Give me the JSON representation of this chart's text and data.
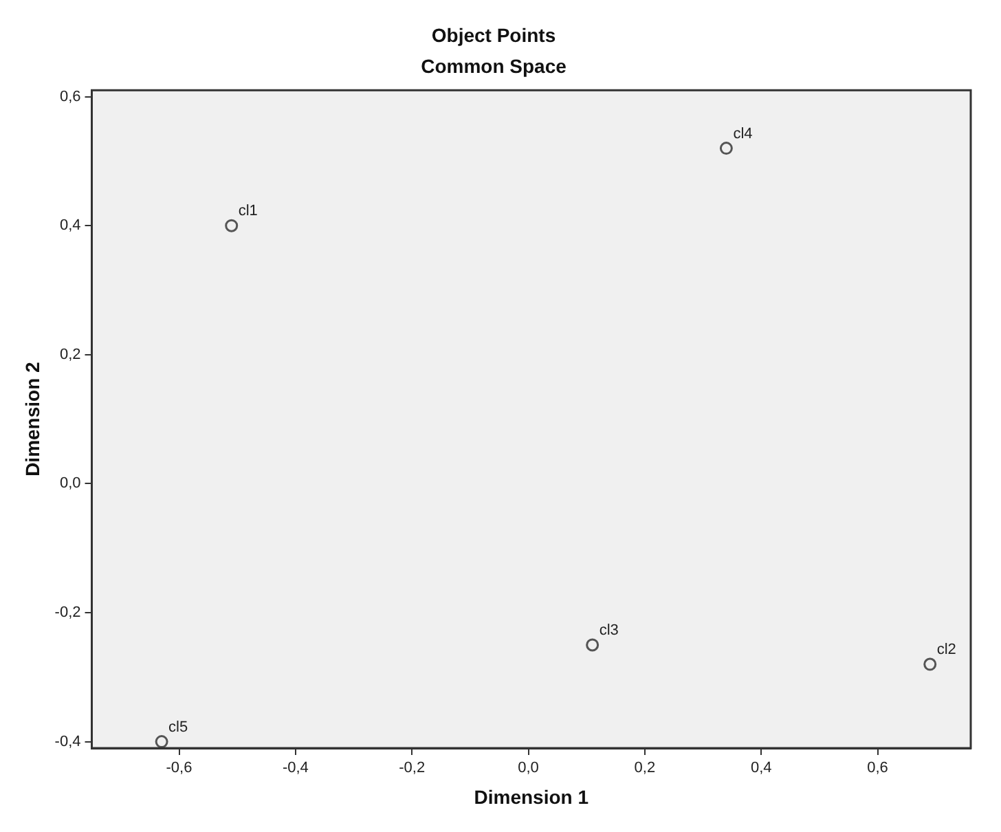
{
  "chart_data": {
    "type": "scatter",
    "title": "Object Points",
    "subtitle": "Common Space",
    "xlabel": "Dimension 1",
    "ylabel": "Dimension 2",
    "x": [
      -0.51,
      0.69,
      0.11,
      0.34,
      -0.63
    ],
    "series": [
      {
        "color": "#555555",
        "values": [
          0.4,
          -0.28,
          -0.25,
          0.52,
          -0.4
        ]
      }
    ],
    "xlim": [
      -0.75,
      0.76
    ],
    "ylim": [
      -0.41,
      0.61
    ],
    "xticks": [
      {
        "value": -0.6,
        "label": "-0,6"
      },
      {
        "value": -0.4,
        "label": "-0,4"
      },
      {
        "value": -0.2,
        "label": "-0,2"
      },
      {
        "value": 0,
        "label": "0,0"
      },
      {
        "value": 0.2,
        "label": "0,2"
      },
      {
        "value": 0.4,
        "label": "0,4"
      },
      {
        "value": 0.6,
        "label": "0,6"
      }
    ],
    "yticks": [
      {
        "value": -0.4,
        "label": "-0,4"
      },
      {
        "value": -0.2,
        "label": "-0,2"
      },
      {
        "value": 0,
        "label": "0,0"
      },
      {
        "value": 0.2,
        "label": "0,2"
      },
      {
        "value": 0.4,
        "label": "0,4"
      },
      {
        "value": 0.6,
        "label": "0,6"
      }
    ],
    "marker": "circle",
    "annotations": [
      {
        "text": "cl1",
        "x": -0.51,
        "y": 0.4
      },
      {
        "text": "cl2",
        "x": 0.69,
        "y": -0.28
      },
      {
        "text": "cl3",
        "x": 0.11,
        "y": -0.25
      },
      {
        "text": "cl4",
        "x": 0.34,
        "y": 0.52
      },
      {
        "text": "cl5",
        "x": -0.63,
        "y": -0.4
      }
    ]
  }
}
